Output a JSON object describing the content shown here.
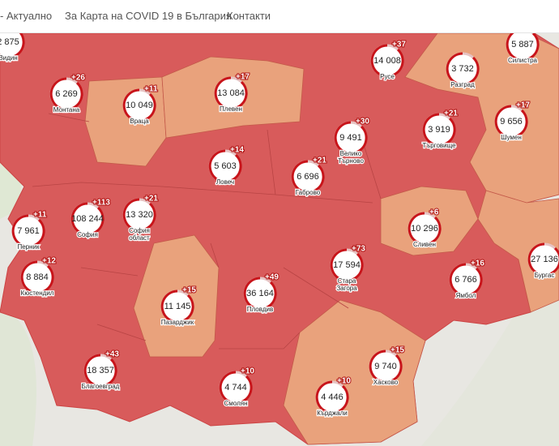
{
  "nav": [
    "- Актуално",
    "За Карта на COVID 19 в България",
    "Контакти"
  ],
  "markers": [
    {
      "count": "2 875",
      "name": [
        "Видин"
      ]
    },
    {
      "count": "6 269",
      "delta": "+26",
      "name": [
        "Монтана"
      ]
    },
    {
      "count": "10 049",
      "delta": "+11",
      "name": [
        "Враца"
      ]
    },
    {
      "count": "13 084",
      "delta": "+17",
      "name": [
        "Плевен"
      ]
    },
    {
      "count": "14 008",
      "delta": "+37",
      "name": [
        "Русе"
      ]
    },
    {
      "count": "3 732",
      "name": [
        "Разград"
      ]
    },
    {
      "count": "5 887",
      "name": [
        "Силистра"
      ]
    },
    {
      "count": "9 656",
      "delta": "+17",
      "name": [
        "Шумен"
      ]
    },
    {
      "count": "3 919",
      "delta": "+21",
      "name": [
        "Търговище"
      ]
    },
    {
      "count": "9 491",
      "delta": "+30",
      "name": [
        "Велико",
        "Търново"
      ]
    },
    {
      "count": "5 603",
      "delta": "+14",
      "name": [
        "Ловеч"
      ]
    },
    {
      "count": "6 696",
      "delta": "+21",
      "name": [
        "Габрово"
      ]
    },
    {
      "count": "7 961",
      "delta": "+11",
      "name": [
        "Перник"
      ]
    },
    {
      "count": "108 244",
      "delta": "+113",
      "name": [
        "София"
      ]
    },
    {
      "count": "13 320",
      "delta": "+21",
      "name": [
        "София",
        "област"
      ]
    },
    {
      "count": "10 296",
      "delta": "+6",
      "name": [
        "Сливен"
      ]
    },
    {
      "count": "27 136",
      "name": [
        "Бургас"
      ]
    },
    {
      "count": "8 884",
      "delta": "+12",
      "name": [
        "Кюстендил"
      ]
    },
    {
      "count": "17 594",
      "delta": "+73",
      "name": [
        "Стара",
        "Загора"
      ]
    },
    {
      "count": "6 766",
      "delta": "+16",
      "name": [
        "Ямбол"
      ]
    },
    {
      "count": "11 145",
      "delta": "+15",
      "name": [
        "Пазарджик"
      ]
    },
    {
      "count": "36 164",
      "delta": "+49",
      "name": [
        "Пловдив"
      ]
    },
    {
      "count": "9 740",
      "delta": "+15",
      "name": [
        "Хасково"
      ]
    },
    {
      "count": "18 357",
      "delta": "+43",
      "name": [
        "Благоевград"
      ]
    },
    {
      "count": "4 744",
      "delta": "+10",
      "name": [
        "Смолян"
      ]
    },
    {
      "count": "4 446",
      "delta": "+10",
      "name": [
        "Кърджали"
      ]
    }
  ]
}
